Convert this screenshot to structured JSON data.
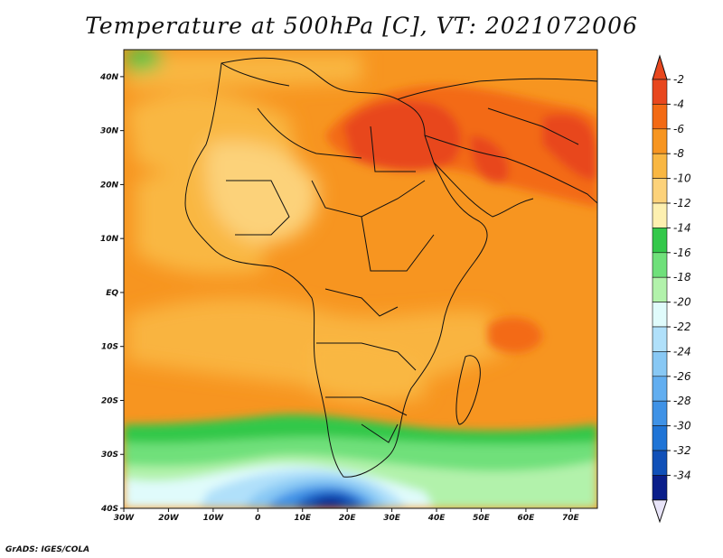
{
  "title": "Temperature at 500hPa [C], VT: 2021072006",
  "credit": "GrADS: IGES/COLA",
  "map": {
    "region": "Africa and Middle East",
    "lon_range": [
      -30,
      76
    ],
    "lat_range": [
      -40,
      45
    ],
    "lon_ticks": [
      {
        "value": -30,
        "label": "30W"
      },
      {
        "value": -20,
        "label": "20W"
      },
      {
        "value": -10,
        "label": "10W"
      },
      {
        "value": 0,
        "label": "0"
      },
      {
        "value": 10,
        "label": "10E"
      },
      {
        "value": 20,
        "label": "20E"
      },
      {
        "value": 30,
        "label": "30E"
      },
      {
        "value": 40,
        "label": "40E"
      },
      {
        "value": 50,
        "label": "50E"
      },
      {
        "value": 60,
        "label": "60E"
      },
      {
        "value": 70,
        "label": "70E"
      }
    ],
    "lat_ticks": [
      {
        "value": 40,
        "label": "40N"
      },
      {
        "value": 30,
        "label": "30N"
      },
      {
        "value": 20,
        "label": "20N"
      },
      {
        "value": 10,
        "label": "10N"
      },
      {
        "value": 0,
        "label": "EQ"
      },
      {
        "value": -10,
        "label": "10S"
      },
      {
        "value": -20,
        "label": "20S"
      },
      {
        "value": -30,
        "label": "30S"
      },
      {
        "value": -40,
        "label": "40S"
      }
    ]
  },
  "colorbar": {
    "labels": [
      "-2",
      "-4",
      "-6",
      "-8",
      "-10",
      "-12",
      "-14",
      "-16",
      "-18",
      "-20",
      "-22",
      "-24",
      "-26",
      "-28",
      "-30",
      "-32",
      "-34"
    ],
    "colors": [
      "#e8471e",
      "#f36a14",
      "#f79520",
      "#f9b742",
      "#fcd27a",
      "#fdf0b0",
      "#33c84a",
      "#6fe07a",
      "#b2f2ab",
      "#e0fbfb",
      "#b0e0fa",
      "#88c8f4",
      "#62aef0",
      "#3f92e6",
      "#1f74d6",
      "#1050b8",
      "#0a1e8a"
    ]
  }
}
